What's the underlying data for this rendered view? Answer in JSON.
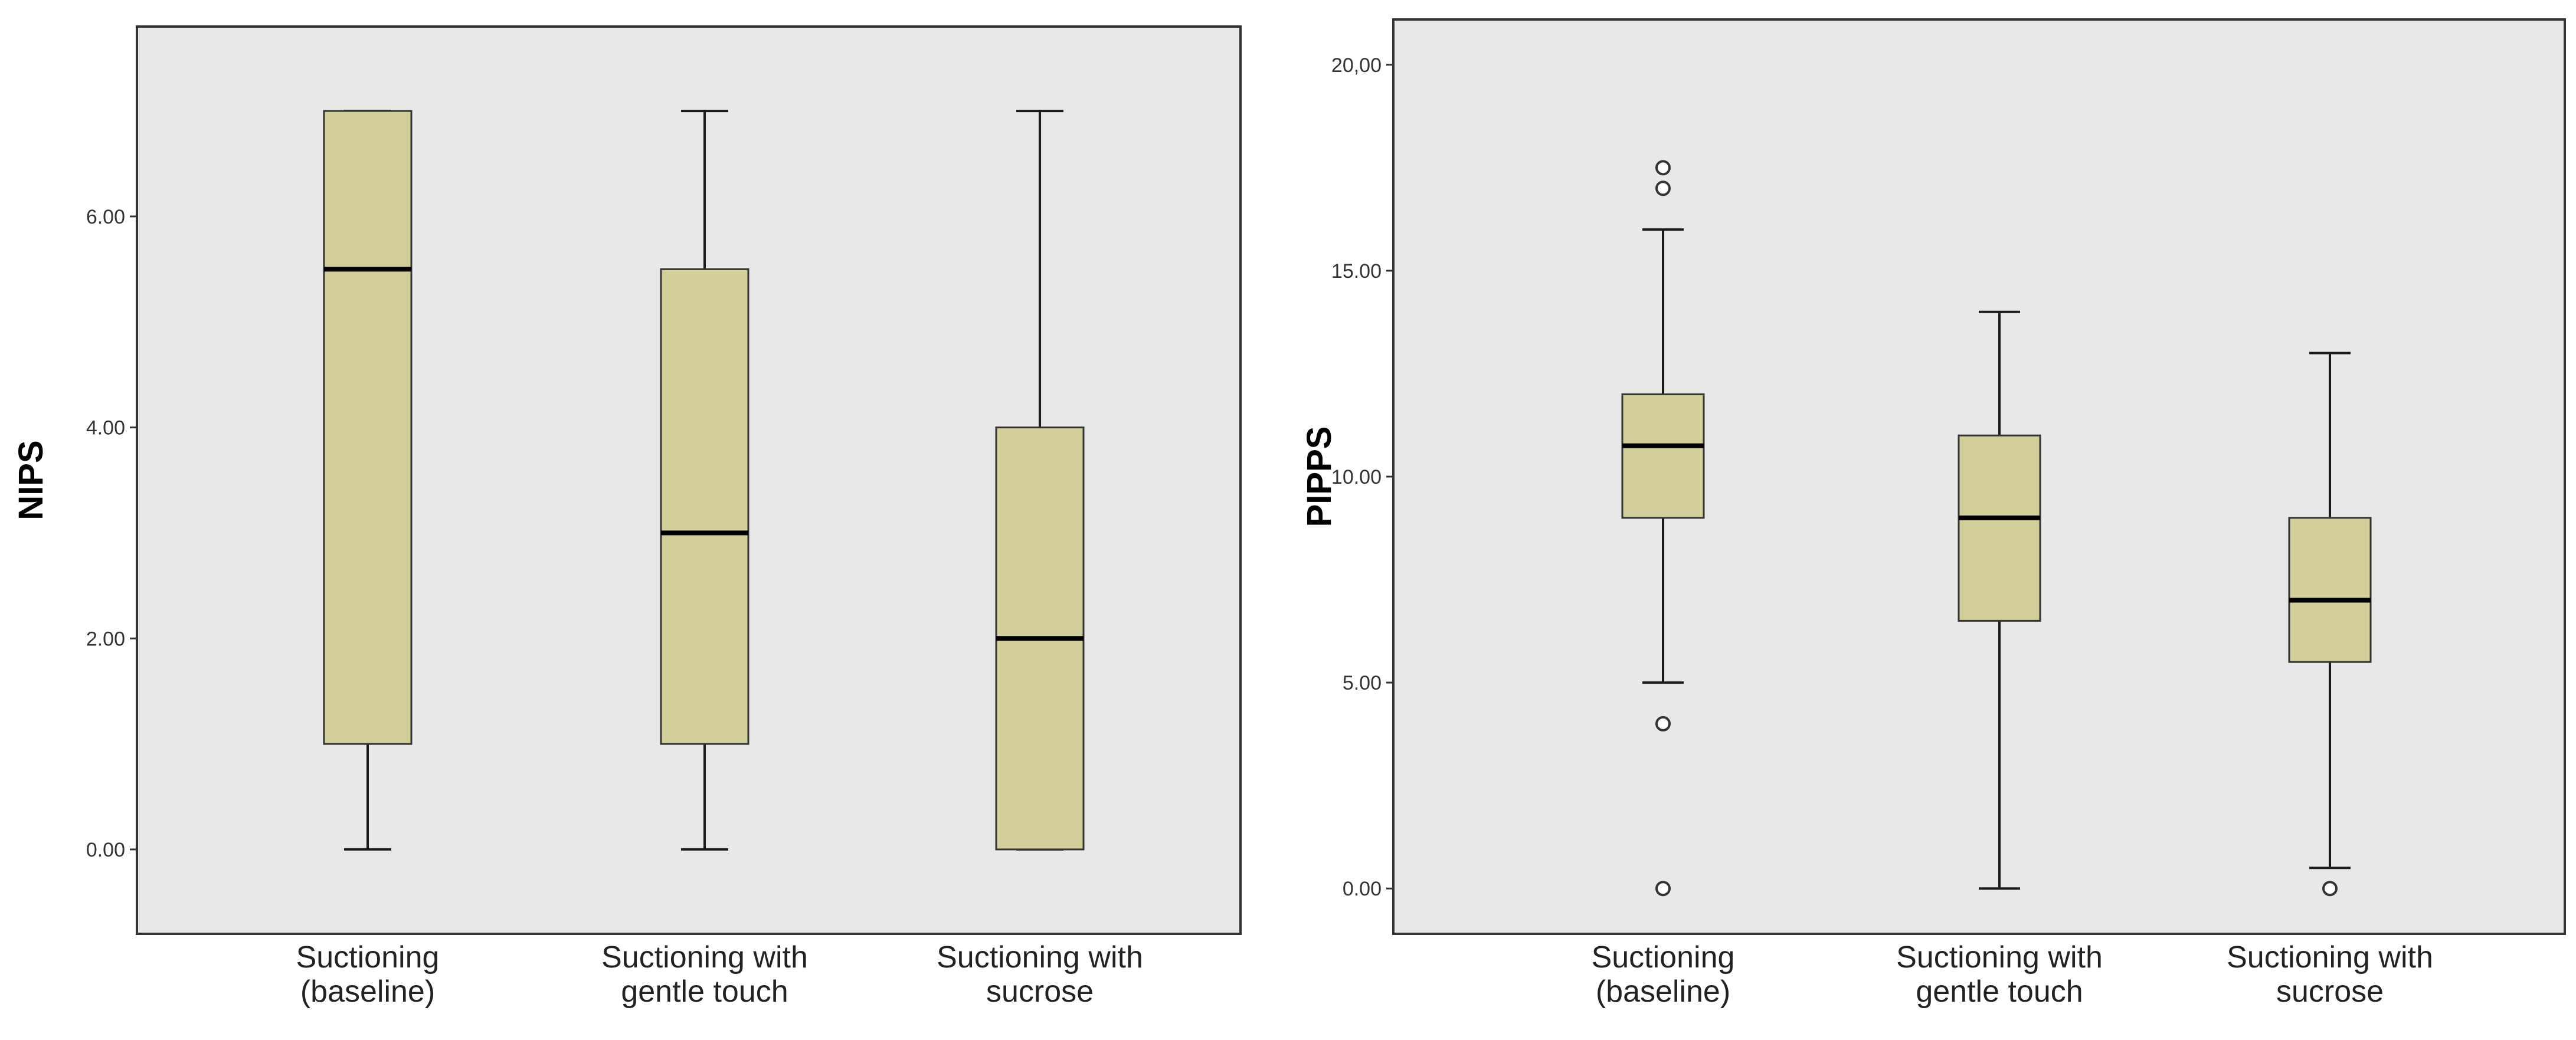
{
  "chart_data": [
    {
      "type": "boxplot",
      "ylabel": "NIPS",
      "xlabel": "",
      "ylim": [
        -0.8,
        7.8
      ],
      "yticks": [
        0,
        2,
        4,
        6
      ],
      "ytick_labels": [
        "0.00",
        "2.00",
        "4.00",
        "6.00"
      ],
      "grid": false,
      "categories": [
        {
          "label_lines": [
            "Suctioning",
            "(baseline)"
          ],
          "min": 0,
          "q1": 1,
          "median": 5.5,
          "q3": 7,
          "max": 7,
          "outliers": []
        },
        {
          "label_lines": [
            "Suctioning with",
            "gentle touch"
          ],
          "min": 0,
          "q1": 1,
          "median": 3,
          "q3": 5.5,
          "max": 7,
          "outliers": []
        },
        {
          "label_lines": [
            "Suctioning with",
            "sucrose"
          ],
          "min": 0,
          "q1": 0,
          "median": 2,
          "q3": 4,
          "max": 7,
          "outliers": []
        }
      ]
    },
    {
      "type": "boxplot",
      "ylabel": "PIPPS",
      "xlabel": "",
      "ylim": [
        -1.1,
        21.1
      ],
      "yticks": [
        0,
        5,
        10,
        15,
        20
      ],
      "ytick_labels": [
        "0.00",
        "5.00",
        "10.00",
        "15.00",
        "20,00"
      ],
      "grid": false,
      "categories": [
        {
          "label_lines": [
            "Suctioning",
            "(baseline)"
          ],
          "min": 5,
          "q1": 9,
          "median": 10.75,
          "q3": 12,
          "max": 16,
          "outliers": [
            17,
            17.5,
            4,
            0
          ]
        },
        {
          "label_lines": [
            "Suctioning with",
            "gentle touch"
          ],
          "min": 0,
          "q1": 6.5,
          "median": 9,
          "q3": 11,
          "max": 14,
          "outliers": []
        },
        {
          "label_lines": [
            "Suctioning with",
            "sucrose"
          ],
          "min": 0.5,
          "q1": 5.5,
          "median": 7,
          "q3": 9,
          "max": 13,
          "outliers": [
            0
          ]
        }
      ]
    }
  ],
  "colors": {
    "box_fill": "#d3cf9b",
    "plot_background": "#e8e8e8"
  }
}
